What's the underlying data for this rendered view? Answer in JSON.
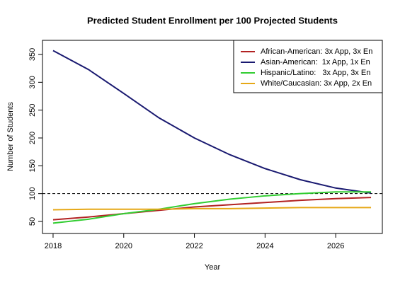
{
  "chart_data": {
    "type": "line",
    "title": "Predicted Student Enrollment per 100 Projected Students",
    "x_label": "Year",
    "y_label": "Number of Students",
    "x": [
      2018,
      2019,
      2020,
      2021,
      2022,
      2023,
      2024,
      2025,
      2026,
      2027
    ],
    "series": [
      {
        "name": "African-American: 3x App, 3x En",
        "color": "#b22222",
        "values": [
          53,
          58,
          64,
          70,
          76,
          80,
          84,
          88,
          91,
          93
        ]
      },
      {
        "name": "Asian-American:  1x App, 1x En",
        "color": "#191970",
        "values": [
          357,
          323,
          280,
          236,
          200,
          170,
          145,
          125,
          110,
          101
        ]
      },
      {
        "name": "Hispanic/Latino:   3x App, 3x En",
        "color": "#32cd32",
        "values": [
          47,
          54,
          64,
          72,
          82,
          90,
          96,
          100,
          103,
          103
        ]
      },
      {
        "name": "White/Caucasian: 3x App, 2x En",
        "color": "#e6a817",
        "values": [
          71,
          72,
          72,
          72,
          73,
          73,
          74,
          75,
          75,
          75
        ]
      }
    ],
    "reference_line": 100,
    "xlim": [
      2017.7,
      2027.32
    ],
    "xticks": [
      2018,
      2020,
      2022,
      2024,
      2026
    ],
    "ylim": [
      28.4,
      375.4
    ],
    "yticks": [
      50,
      100,
      150,
      200,
      250,
      300,
      350
    ],
    "legend": "top-right"
  }
}
